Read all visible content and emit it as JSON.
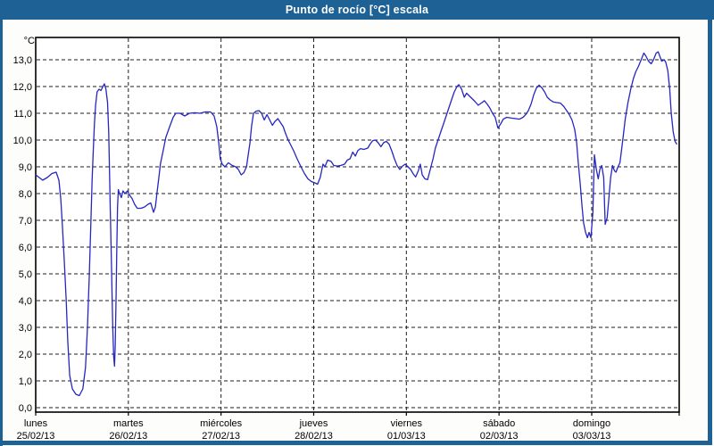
{
  "window": {
    "title": "Punto de rocío [°C] escala"
  },
  "colors": {
    "frame": "#1E6295",
    "title_text": "#FFFFFF",
    "background": "#FDFDFC",
    "plot_background": "#FFFFFF",
    "plot_border": "#000000",
    "gridline": "#1C1C1C",
    "label_text": "#000000",
    "line": "#2626C2"
  },
  "chart_data": {
    "type": "line",
    "title": "Punto de rocío [°C] escala",
    "ylabel": "°C",
    "ylim": [
      0,
      13.7
    ],
    "grid": true,
    "legend": false,
    "x_unit": "hours from lunes 00:00",
    "x_range_hours": [
      0,
      168
    ],
    "y_ticks": [
      {
        "value": 0,
        "label": "0,0"
      },
      {
        "value": 1,
        "label": "1,0"
      },
      {
        "value": 2,
        "label": "2,0"
      },
      {
        "value": 3,
        "label": "3,0"
      },
      {
        "value": 4,
        "label": "4,0"
      },
      {
        "value": 5,
        "label": "5,0"
      },
      {
        "value": 6,
        "label": "6,0"
      },
      {
        "value": 7,
        "label": "7,0"
      },
      {
        "value": 8,
        "label": "8,0"
      },
      {
        "value": 9,
        "label": "9,0"
      },
      {
        "value": 10,
        "label": "10,0"
      },
      {
        "value": 11,
        "label": "11,0"
      },
      {
        "value": 12,
        "label": "12,0"
      },
      {
        "value": 13,
        "label": "13,0"
      }
    ],
    "x_days": [
      {
        "name": "lunes",
        "date": "25/02/13"
      },
      {
        "name": "martes",
        "date": "26/02/13"
      },
      {
        "name": "miércoles",
        "date": "27/02/13"
      },
      {
        "name": "jueves",
        "date": "28/02/13"
      },
      {
        "name": "viernes",
        "date": "01/03/13"
      },
      {
        "name": "sábado",
        "date": "02/03/13"
      },
      {
        "name": "domingo",
        "date": "03/03/13"
      }
    ],
    "series": [
      {
        "name": "Punto de rocío",
        "color": "#2626C2",
        "points": [
          [
            0,
            8.7
          ],
          [
            0.9,
            8.6
          ],
          [
            1.8,
            8.5
          ],
          [
            3,
            8.6
          ],
          [
            4.2,
            8.75
          ],
          [
            5.3,
            8.8
          ],
          [
            6,
            8.5
          ],
          [
            6.5,
            7.8
          ],
          [
            6.9,
            6.8
          ],
          [
            7.4,
            5.5
          ],
          [
            7.9,
            4
          ],
          [
            8.3,
            2.5
          ],
          [
            8.8,
            1.2
          ],
          [
            9.5,
            0.7
          ],
          [
            10.4,
            0.5
          ],
          [
            11.3,
            0.45
          ],
          [
            12.2,
            0.7
          ],
          [
            12.9,
            1.5
          ],
          [
            13.4,
            3
          ],
          [
            13.9,
            5
          ],
          [
            14.3,
            7
          ],
          [
            14.6,
            8.5
          ],
          [
            14.9,
            9.6
          ],
          [
            15.2,
            10.6
          ],
          [
            15.5,
            11.3
          ],
          [
            15.9,
            11.8
          ],
          [
            16.4,
            11.9
          ],
          [
            16.9,
            11.85
          ],
          [
            17.4,
            12
          ],
          [
            17.8,
            12.1
          ],
          [
            18.2,
            11.9
          ],
          [
            18.6,
            11.4
          ],
          [
            18.9,
            10.3
          ],
          [
            19.1,
            9
          ],
          [
            19.3,
            7.5
          ],
          [
            19.6,
            5.5
          ],
          [
            19.8,
            4
          ],
          [
            20,
            2.8
          ],
          [
            20.2,
            1.9
          ],
          [
            20.4,
            1.55
          ],
          [
            20.6,
            2.3
          ],
          [
            20.8,
            4
          ],
          [
            21,
            6
          ],
          [
            21.2,
            7.5
          ],
          [
            21.4,
            8.15
          ],
          [
            21.7,
            8
          ],
          [
            22.2,
            7.85
          ],
          [
            22.6,
            8.1
          ],
          [
            23.1,
            8
          ],
          [
            23.8,
            8.1
          ],
          [
            24.3,
            7.95
          ],
          [
            25,
            7.8
          ],
          [
            25.6,
            7.6
          ],
          [
            26.3,
            7.45
          ],
          [
            27.3,
            7.45
          ],
          [
            28.2,
            7.5
          ],
          [
            29.1,
            7.6
          ],
          [
            29.8,
            7.65
          ],
          [
            30.5,
            7.3
          ],
          [
            31,
            7.5
          ],
          [
            31.4,
            8
          ],
          [
            31.9,
            8.6
          ],
          [
            32.3,
            9.1
          ],
          [
            33,
            9.6
          ],
          [
            33.7,
            10.1
          ],
          [
            34.7,
            10.5
          ],
          [
            35.6,
            10.85
          ],
          [
            36.3,
            11
          ],
          [
            37.4,
            11
          ],
          [
            38.6,
            10.9
          ],
          [
            39.8,
            11
          ],
          [
            41.2,
            11.02
          ],
          [
            42.5,
            11
          ],
          [
            43.9,
            11.05
          ],
          [
            45.3,
            11.05
          ],
          [
            46.2,
            10.9
          ],
          [
            46.9,
            10.5
          ],
          [
            47.4,
            9.9
          ],
          [
            47.8,
            9.3
          ],
          [
            48.3,
            9.1
          ],
          [
            49,
            9
          ],
          [
            49.9,
            9.15
          ],
          [
            50.9,
            9.05
          ],
          [
            51.8,
            9
          ],
          [
            52.5,
            8.9
          ],
          [
            53.2,
            8.7
          ],
          [
            53.9,
            8.78
          ],
          [
            54.6,
            9
          ],
          [
            55,
            9.4
          ],
          [
            55.5,
            9.9
          ],
          [
            55.9,
            10.5
          ],
          [
            56.4,
            11
          ],
          [
            57.1,
            11.08
          ],
          [
            57.8,
            11.1
          ],
          [
            58.5,
            11
          ],
          [
            59.2,
            10.75
          ],
          [
            59.9,
            10.95
          ],
          [
            60.6,
            10.75
          ],
          [
            61.3,
            10.55
          ],
          [
            62,
            10.7
          ],
          [
            62.7,
            10.8
          ],
          [
            63.4,
            10.65
          ],
          [
            64.1,
            10.5
          ],
          [
            64.7,
            10.25
          ],
          [
            65.4,
            10
          ],
          [
            66.1,
            9.8
          ],
          [
            66.8,
            9.6
          ],
          [
            67.7,
            9.3
          ],
          [
            68.7,
            9
          ],
          [
            69.6,
            8.75
          ],
          [
            70.5,
            8.55
          ],
          [
            71.4,
            8.45
          ],
          [
            72.3,
            8.4
          ],
          [
            73,
            8.35
          ],
          [
            73.7,
            8.6
          ],
          [
            74.4,
            9.1
          ],
          [
            74.9,
            9
          ],
          [
            75.6,
            9.25
          ],
          [
            76.5,
            9.2
          ],
          [
            77.2,
            9.05
          ],
          [
            78.1,
            9.03
          ],
          [
            79,
            9.05
          ],
          [
            80,
            9.1
          ],
          [
            80.7,
            9.25
          ],
          [
            81.4,
            9.3
          ],
          [
            82.1,
            9.55
          ],
          [
            82.8,
            9.4
          ],
          [
            83.4,
            9.6
          ],
          [
            84.1,
            9.68
          ],
          [
            85,
            9.65
          ],
          [
            86,
            9.7
          ],
          [
            86.6,
            9.85
          ],
          [
            87.3,
            9.98
          ],
          [
            88,
            10
          ],
          [
            88.7,
            9.9
          ],
          [
            89.4,
            9.75
          ],
          [
            90.1,
            9.9
          ],
          [
            90.8,
            9.95
          ],
          [
            91.5,
            9.85
          ],
          [
            92.2,
            9.6
          ],
          [
            92.9,
            9.3
          ],
          [
            93.6,
            9.05
          ],
          [
            94.3,
            8.9
          ],
          [
            95,
            9.03
          ],
          [
            95.7,
            9.1
          ],
          [
            96.4,
            9
          ],
          [
            97.1,
            8.9
          ],
          [
            97.8,
            8.73
          ],
          [
            98.4,
            8.62
          ],
          [
            99.1,
            8.85
          ],
          [
            99.6,
            9.1
          ],
          [
            100.1,
            8.7
          ],
          [
            100.8,
            8.55
          ],
          [
            101.5,
            8.52
          ],
          [
            102.2,
            8.9
          ],
          [
            102.9,
            9.3
          ],
          [
            103.5,
            9.7
          ],
          [
            104.2,
            10
          ],
          [
            104.9,
            10.3
          ],
          [
            105.6,
            10.6
          ],
          [
            106.3,
            10.9
          ],
          [
            107,
            11.2
          ],
          [
            107.7,
            11.5
          ],
          [
            108.4,
            11.8
          ],
          [
            109.1,
            12
          ],
          [
            109.6,
            12.07
          ],
          [
            110.3,
            11.9
          ],
          [
            111,
            11.6
          ],
          [
            111.6,
            11.75
          ],
          [
            112.3,
            11.65
          ],
          [
            113,
            11.55
          ],
          [
            113.7,
            11.45
          ],
          [
            114.6,
            11.3
          ],
          [
            115.6,
            11.4
          ],
          [
            116.2,
            11.47
          ],
          [
            116.9,
            11.35
          ],
          [
            117.6,
            11.2
          ],
          [
            118.3,
            11
          ],
          [
            119,
            10.85
          ],
          [
            119.7,
            10.45
          ],
          [
            120.4,
            10.6
          ],
          [
            121.1,
            10.78
          ],
          [
            122,
            10.85
          ],
          [
            123.2,
            10.82
          ],
          [
            124.3,
            10.8
          ],
          [
            125.3,
            10.78
          ],
          [
            126.2,
            10.85
          ],
          [
            126.9,
            10.95
          ],
          [
            127.6,
            11.1
          ],
          [
            128.3,
            11.35
          ],
          [
            129,
            11.7
          ],
          [
            129.7,
            11.95
          ],
          [
            130.4,
            12.05
          ],
          [
            131.1,
            11.95
          ],
          [
            131.8,
            11.8
          ],
          [
            132.5,
            11.6
          ],
          [
            133.2,
            11.5
          ],
          [
            134.1,
            11.42
          ],
          [
            135,
            11.4
          ],
          [
            135.9,
            11.38
          ],
          [
            136.8,
            11.25
          ],
          [
            137.5,
            11.1
          ],
          [
            138.2,
            10.95
          ],
          [
            138.9,
            10.75
          ],
          [
            139.6,
            10.4
          ],
          [
            140.1,
            9.9
          ],
          [
            140.5,
            9.2
          ],
          [
            141,
            8.4
          ],
          [
            141.5,
            7.5
          ],
          [
            141.9,
            6.9
          ],
          [
            142.4,
            6.55
          ],
          [
            142.9,
            6.35
          ],
          [
            143.3,
            6.55
          ],
          [
            143.8,
            6.35
          ],
          [
            144.3,
            7.3
          ],
          [
            144.7,
            9.45
          ],
          [
            145.2,
            8.9
          ],
          [
            145.7,
            8.55
          ],
          [
            146.1,
            8.9
          ],
          [
            146.6,
            9.05
          ],
          [
            147.1,
            8.6
          ],
          [
            147.5,
            6.85
          ],
          [
            148,
            7.1
          ],
          [
            148.5,
            7.9
          ],
          [
            148.9,
            8.6
          ],
          [
            149.4,
            9.05
          ],
          [
            149.9,
            8.85
          ],
          [
            150.3,
            8.8
          ],
          [
            150.8,
            9
          ],
          [
            151.3,
            9.15
          ],
          [
            151.7,
            9.6
          ],
          [
            152.2,
            10.2
          ],
          [
            152.7,
            10.8
          ],
          [
            153.4,
            11.4
          ],
          [
            154.1,
            11.9
          ],
          [
            154.8,
            12.3
          ],
          [
            155.4,
            12.55
          ],
          [
            156.1,
            12.75
          ],
          [
            156.8,
            13
          ],
          [
            157.5,
            13.25
          ],
          [
            158,
            13.15
          ],
          [
            158.7,
            12.95
          ],
          [
            159.4,
            12.85
          ],
          [
            160,
            13
          ],
          [
            160.7,
            13.25
          ],
          [
            161.2,
            13.3
          ],
          [
            161.6,
            13.15
          ],
          [
            162.1,
            12.95
          ],
          [
            162.8,
            13
          ],
          [
            163.2,
            12.9
          ],
          [
            163.7,
            12.6
          ],
          [
            164.2,
            11.9
          ],
          [
            164.6,
            11
          ],
          [
            165.1,
            10.3
          ],
          [
            165.6,
            9.95
          ],
          [
            166,
            9.85
          ]
        ]
      }
    ]
  }
}
